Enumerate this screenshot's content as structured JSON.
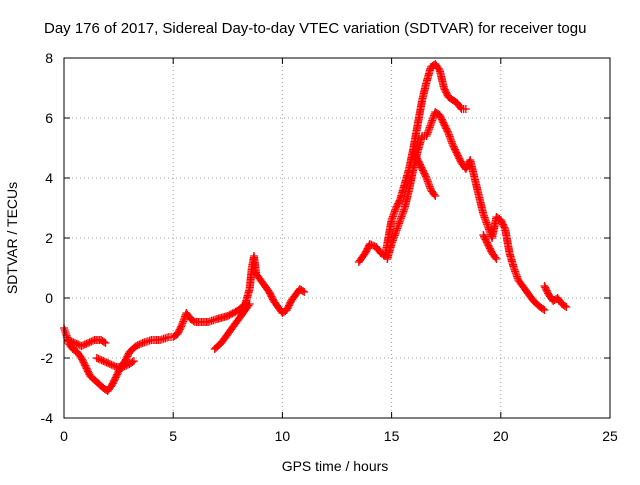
{
  "chart_data": {
    "type": "scatter",
    "title": "Day 176 of 2017, Sidereal Day-to-day VTEC variation (SDTVAR) for receiver togu",
    "xlabel": "GPS time / hours",
    "ylabel": "SDTVAR / TECUs",
    "xlim": [
      0,
      25
    ],
    "ylim": [
      -4,
      8
    ],
    "xticks": [
      0,
      5,
      10,
      15,
      20,
      25
    ],
    "yticks": [
      -4,
      -2,
      0,
      2,
      4,
      6,
      8
    ],
    "xtick_labels": [
      "0",
      "5",
      "10",
      "15",
      "20",
      "25"
    ],
    "ytick_labels": [
      "-4",
      "-2",
      "0",
      "2",
      "4",
      "6",
      "8"
    ],
    "grid": true,
    "legend": "none",
    "marker": "+",
    "series_color": "#ff0000",
    "series": [
      {
        "name": "segment-1",
        "points": [
          [
            0.0,
            -1.0
          ],
          [
            0.1,
            -1.2
          ],
          [
            0.2,
            -1.5
          ],
          [
            0.4,
            -1.7
          ],
          [
            0.6,
            -1.8
          ],
          [
            0.8,
            -2.0
          ],
          [
            1.0,
            -2.3
          ],
          [
            1.2,
            -2.6
          ],
          [
            1.5,
            -2.8
          ],
          [
            1.8,
            -3.0
          ],
          [
            2.0,
            -3.1
          ],
          [
            2.2,
            -2.9
          ],
          [
            2.4,
            -2.6
          ],
          [
            2.6,
            -2.3
          ],
          [
            2.8,
            -2.1
          ],
          [
            3.0,
            -1.8
          ],
          [
            3.3,
            -1.6
          ],
          [
            3.6,
            -1.5
          ],
          [
            4.0,
            -1.4
          ],
          [
            4.4,
            -1.4
          ],
          [
            4.8,
            -1.3
          ],
          [
            5.0,
            -1.3
          ],
          [
            5.2,
            -1.2
          ],
          [
            5.4,
            -0.9
          ],
          [
            5.6,
            -0.5
          ],
          [
            5.8,
            -0.7
          ],
          [
            6.0,
            -0.8
          ],
          [
            6.3,
            -0.8
          ],
          [
            6.6,
            -0.8
          ],
          [
            7.0,
            -0.7
          ],
          [
            7.5,
            -0.6
          ],
          [
            8.0,
            -0.4
          ],
          [
            8.3,
            -0.2
          ],
          [
            8.5,
            0.3
          ],
          [
            8.6,
            1.0
          ],
          [
            8.7,
            1.4
          ],
          [
            8.8,
            0.8
          ],
          [
            9.0,
            0.6
          ],
          [
            9.2,
            0.4
          ],
          [
            9.4,
            0.2
          ],
          [
            9.6,
            -0.1
          ],
          [
            9.8,
            -0.3
          ],
          [
            10.0,
            -0.5
          ],
          [
            10.2,
            -0.4
          ],
          [
            10.4,
            -0.1
          ],
          [
            10.6,
            0.1
          ],
          [
            10.8,
            0.3
          ],
          [
            11.0,
            0.2
          ]
        ]
      },
      {
        "name": "segment-2",
        "points": [
          [
            0.2,
            -1.4
          ],
          [
            0.5,
            -1.5
          ],
          [
            0.8,
            -1.6
          ],
          [
            1.1,
            -1.5
          ],
          [
            1.4,
            -1.4
          ],
          [
            1.7,
            -1.4
          ],
          [
            1.9,
            -1.5
          ]
        ]
      },
      {
        "name": "segment-3",
        "points": [
          [
            1.5,
            -2.0
          ],
          [
            1.8,
            -2.1
          ],
          [
            2.1,
            -2.2
          ],
          [
            2.4,
            -2.3
          ],
          [
            2.7,
            -2.3
          ],
          [
            3.0,
            -2.2
          ],
          [
            3.2,
            -2.1
          ]
        ]
      },
      {
        "name": "segment-4",
        "points": [
          [
            6.9,
            -1.7
          ],
          [
            7.2,
            -1.5
          ],
          [
            7.5,
            -1.2
          ],
          [
            7.8,
            -0.9
          ],
          [
            8.1,
            -0.6
          ],
          [
            8.3,
            -0.4
          ],
          [
            8.5,
            -0.2
          ]
        ]
      },
      {
        "name": "segment-5",
        "points": [
          [
            13.5,
            1.2
          ],
          [
            13.8,
            1.5
          ],
          [
            14.0,
            1.8
          ],
          [
            14.3,
            1.7
          ],
          [
            14.5,
            1.5
          ],
          [
            14.7,
            1.4
          ],
          [
            14.8,
            1.8
          ],
          [
            15.0,
            2.6
          ],
          [
            15.2,
            3.0
          ],
          [
            15.4,
            3.3
          ],
          [
            15.6,
            3.8
          ],
          [
            15.8,
            4.3
          ],
          [
            16.0,
            5.0
          ],
          [
            16.2,
            5.8
          ],
          [
            16.4,
            6.6
          ],
          [
            16.6,
            7.2
          ],
          [
            16.8,
            7.7
          ],
          [
            17.0,
            7.8
          ],
          [
            17.2,
            7.6
          ],
          [
            17.4,
            7.0
          ],
          [
            17.6,
            6.7
          ],
          [
            17.8,
            6.6
          ],
          [
            18.0,
            6.5
          ],
          [
            18.2,
            6.3
          ],
          [
            18.4,
            6.3
          ]
        ]
      },
      {
        "name": "segment-6",
        "points": [
          [
            14.8,
            1.3
          ],
          [
            15.0,
            1.8
          ],
          [
            15.2,
            2.2
          ],
          [
            15.4,
            2.6
          ],
          [
            15.6,
            3.0
          ],
          [
            15.8,
            3.6
          ],
          [
            16.0,
            4.3
          ],
          [
            16.2,
            4.9
          ],
          [
            16.4,
            5.4
          ],
          [
            16.6,
            5.4
          ],
          [
            16.8,
            5.8
          ],
          [
            17.0,
            6.2
          ],
          [
            17.2,
            6.1
          ],
          [
            17.4,
            5.8
          ],
          [
            17.6,
            5.5
          ],
          [
            17.8,
            5.1
          ],
          [
            18.0,
            4.8
          ],
          [
            18.2,
            4.5
          ],
          [
            18.4,
            4.3
          ],
          [
            18.6,
            4.6
          ],
          [
            18.8,
            4.0
          ],
          [
            19.0,
            3.4
          ],
          [
            19.2,
            2.8
          ],
          [
            19.4,
            2.4
          ],
          [
            19.6,
            2.0
          ],
          [
            19.8,
            2.7
          ],
          [
            20.0,
            2.6
          ],
          [
            20.2,
            2.3
          ],
          [
            20.4,
            1.5
          ],
          [
            20.6,
            1.0
          ],
          [
            20.8,
            0.6
          ],
          [
            21.0,
            0.4
          ],
          [
            21.2,
            0.2
          ],
          [
            21.5,
            -0.1
          ],
          [
            21.8,
            -0.3
          ],
          [
            22.0,
            -0.4
          ]
        ]
      },
      {
        "name": "segment-7",
        "points": [
          [
            16.0,
            4.9
          ],
          [
            16.2,
            4.6
          ],
          [
            16.4,
            4.3
          ],
          [
            16.6,
            4.0
          ],
          [
            16.8,
            3.6
          ],
          [
            17.0,
            3.4
          ]
        ]
      },
      {
        "name": "segment-8",
        "points": [
          [
            19.2,
            2.1
          ],
          [
            19.4,
            1.8
          ],
          [
            19.6,
            1.5
          ],
          [
            19.8,
            1.3
          ]
        ]
      },
      {
        "name": "segment-9",
        "points": [
          [
            22.0,
            0.4
          ],
          [
            22.2,
            0.1
          ],
          [
            22.4,
            -0.1
          ],
          [
            22.6,
            0.0
          ],
          [
            22.8,
            -0.2
          ],
          [
            23.0,
            -0.3
          ]
        ]
      }
    ]
  }
}
